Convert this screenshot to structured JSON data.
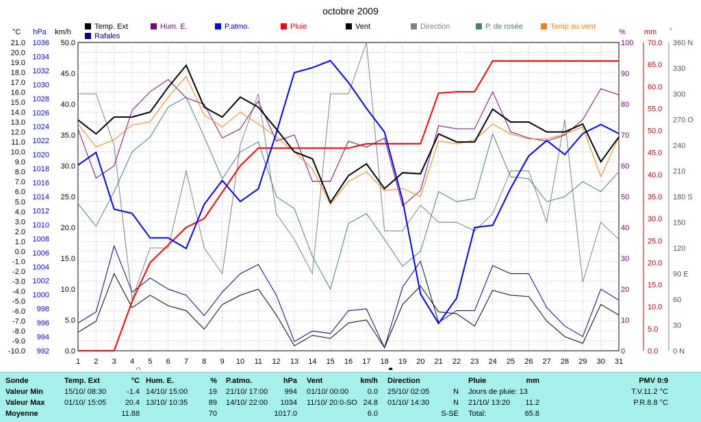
{
  "chart_data": {
    "type": "line",
    "title": "octobre 2009",
    "x": [
      1,
      2,
      3,
      4,
      5,
      6,
      7,
      8,
      9,
      10,
      11,
      12,
      13,
      14,
      15,
      16,
      17,
      18,
      19,
      20,
      21,
      22,
      23,
      24,
      25,
      26,
      27,
      28,
      29,
      30,
      31
    ],
    "axes": {
      "left_temp": {
        "unit": "°C",
        "range": [
          -10,
          21
        ],
        "ticks": [
          "21.0",
          "20.0",
          "19.0",
          "18.0",
          "17.0",
          "16.0",
          "15.0",
          "14.0",
          "13.0",
          "12.0",
          "11.0",
          "10.0",
          "9.0",
          "8.0",
          "7.0",
          "6.0",
          "5.0",
          "4.0",
          "3.0",
          "2.0",
          "1.0",
          "0.0",
          "-1.0",
          "-2.0",
          "-3.0",
          "-4.0",
          "-5.0",
          "-6.0",
          "-7.0",
          "-8.0",
          "-9.0",
          "-10.0"
        ]
      },
      "left_pressure": {
        "unit": "hPa",
        "range": [
          992,
          1036
        ],
        "ticks": [
          "1036",
          "1034",
          "1032",
          "1030",
          "1028",
          "1026",
          "1024",
          "1022",
          "1020",
          "1018",
          "1016",
          "1014",
          "1012",
          "1010",
          "1008",
          "1006",
          "1004",
          "1002",
          "1000",
          "998",
          "996",
          "994",
          "992"
        ]
      },
      "left_wind": {
        "unit": "km/h",
        "range": [
          0,
          50
        ],
        "ticks": [
          "50.0",
          "45.0",
          "40.0",
          "35.0",
          "30.0",
          "25.0",
          "20.0",
          "15.0",
          "10.0",
          "5.0",
          "0.0"
        ]
      },
      "right_humidity": {
        "unit": "%",
        "range": [
          0,
          100
        ],
        "ticks": [
          "100",
          "90",
          "80",
          "70",
          "60",
          "50",
          "40",
          "30",
          "20",
          "10",
          "0"
        ]
      },
      "right_rain": {
        "unit": "mm",
        "range": [
          0,
          70
        ],
        "ticks": [
          "70.0",
          "65.0",
          "60.0",
          "55.0",
          "50.0",
          "45.0",
          "40.0",
          "35.0",
          "30.0",
          "25.0",
          "20.0",
          "15.0",
          "10.0",
          "5.0",
          "0.0"
        ]
      },
      "right_direction": {
        "unit": "°",
        "ticks": [
          "360 N",
          "330",
          "300",
          "270 O",
          "240",
          "210",
          "180 S",
          "150",
          "120",
          "90 E",
          "60",
          "30",
          "0 N"
        ]
      }
    },
    "legend": [
      {
        "name": "Temp. Ext",
        "color": "#000000"
      },
      {
        "name": "Rafales",
        "color": "#000080"
      },
      {
        "name": "Hum. E.",
        "color": "#800080"
      },
      {
        "name": "P.atmo.",
        "color": "#0000ff"
      },
      {
        "name": "Pluie",
        "color": "#ff0000"
      },
      {
        "name": "Vent",
        "color": "#000000"
      },
      {
        "name": "Direction",
        "color": "#808080"
      },
      {
        "name": "P. de rosée",
        "color": "#408080"
      },
      {
        "name": "Temp au vent",
        "color": "#ff8000"
      }
    ],
    "series": [
      {
        "name": "Temp. Ext",
        "axis": "left_temp",
        "color": "#000000",
        "width": 2,
        "values": [
          13.2,
          11.8,
          13.5,
          13.5,
          14.0,
          16.5,
          18.7,
          14.5,
          13.5,
          15.5,
          14.5,
          12.3,
          10.0,
          9.3,
          4.9,
          7.6,
          8.8,
          6.3,
          7.9,
          7.8,
          11.8,
          11.0,
          11.0,
          14.3,
          13.0,
          13.0,
          12.0,
          12.0,
          12.8,
          9.0,
          11.5
        ]
      },
      {
        "name": "Temp au vent",
        "axis": "left_temp",
        "color": "#ff8000",
        "width": 1,
        "values": [
          12.8,
          10.5,
          11.2,
          12.7,
          13.0,
          15.5,
          17.6,
          13.7,
          12.5,
          14.0,
          12.8,
          11.5,
          10.0,
          8.3,
          4.7,
          7.0,
          8.0,
          6.1,
          6.3,
          5.5,
          11.1,
          10.8,
          11.2,
          12.8,
          11.8,
          11.3,
          11.3,
          11.8,
          12.5,
          7.5,
          11.5
        ]
      },
      {
        "name": "Hum. E.",
        "axis": "right_humidity",
        "color": "#800080",
        "width": 1,
        "values": [
          72,
          56,
          60,
          78,
          84,
          88,
          82,
          80,
          69,
          72,
          81,
          68,
          70,
          55,
          55,
          68,
          66,
          69,
          47,
          52,
          73,
          72,
          72,
          84,
          71,
          69,
          68,
          70,
          75,
          85,
          83
        ]
      },
      {
        "name": "P. de rosée",
        "axis": "left_temp",
        "color": "#408080",
        "width": 1,
        "values": [
          4.8,
          2.5,
          6.0,
          10.0,
          11.5,
          14.5,
          15.5,
          11.5,
          7.3,
          10.0,
          11.0,
          5.5,
          4.3,
          -0.5,
          -3.8,
          2.8,
          3.8,
          1.2,
          -1.5,
          0.0,
          6.0,
          5.0,
          5.3,
          11.8,
          7.5,
          7.3,
          5.0,
          5.5,
          7.0,
          6.0,
          8.0
        ]
      },
      {
        "name": "Direction",
        "axis": "right_direction",
        "color": "#808080",
        "width": 1,
        "values": [
          300,
          300,
          240,
          60,
          120,
          120,
          210,
          120,
          90,
          240,
          300,
          160,
          130,
          90,
          300,
          300,
          360,
          140,
          140,
          170,
          150,
          150,
          140,
          160,
          210,
          210,
          150,
          270,
          80,
          150,
          130
        ]
      },
      {
        "name": "P.atmo.",
        "axis": "left_pressure",
        "color": "#0000ff",
        "width": 2,
        "values": [
          1018.5,
          1020.3,
          1012.2,
          1011.6,
          1008.1,
          1008.1,
          1006.6,
          1012.9,
          1016.3,
          1013.3,
          1015.1,
          1023.1,
          1031.7,
          1032.4,
          1033.4,
          1030.3,
          1026.6,
          1023.2,
          1013.5,
          1000.1,
          995.9,
          999.5,
          1009.6,
          1009.9,
          1015.2,
          1019.8,
          1022.0,
          1020.0,
          1023.0,
          1024.3,
          1023.0
        ]
      },
      {
        "name": "Pluie",
        "axis": "right_rain",
        "color": "#ff0000",
        "width": 2,
        "values": [
          0,
          0,
          0,
          11.2,
          20.0,
          24.0,
          28.0,
          30.0,
          36.0,
          42.0,
          46.0,
          46.0,
          46.0,
          46.0,
          46.0,
          46.0,
          47.0,
          47.0,
          47.0,
          47.0,
          58.5,
          58.8,
          58.8,
          65.8,
          65.8,
          65.8,
          65.8,
          65.8,
          65.8,
          65.8,
          65.8
        ]
      },
      {
        "name": "Rafales",
        "axis": "left_wind",
        "color": "#000080",
        "width": 1,
        "values": [
          4.5,
          6.3,
          17.0,
          9.5,
          11.8,
          10.0,
          9.0,
          5.7,
          9.5,
          12.5,
          14.0,
          9.0,
          1.5,
          3.2,
          2.8,
          6.5,
          6.8,
          0.5,
          10.3,
          14.5,
          4.6,
          6.5,
          6.5,
          13.8,
          12.5,
          12.5,
          7.0,
          4.0,
          2.3,
          10.0,
          8.2
        ]
      },
      {
        "name": "Vent",
        "axis": "left_wind",
        "color": "#000000",
        "width": 1,
        "values": [
          3.0,
          4.8,
          12.5,
          7.0,
          9.0,
          7.3,
          6.5,
          3.5,
          7.5,
          9.0,
          10.0,
          5.8,
          0.8,
          2.5,
          2.0,
          4.5,
          5.0,
          0.5,
          7.5,
          10.5,
          6.3,
          6.0,
          4.0,
          9.8,
          9.0,
          8.8,
          4.8,
          2.3,
          1.2,
          7.5,
          5.8
        ]
      }
    ],
    "grid": true,
    "markers": [
      {
        "x": 4,
        "symbol": "○"
      },
      {
        "x": 18,
        "symbol": "●"
      }
    ]
  },
  "stats": {
    "sonde": {
      "head": "Sonde",
      "rows": [
        "Valeur Min",
        "Valeur Max",
        "Moyenne"
      ]
    },
    "temp": {
      "head": "Temp. Ext",
      "unit": "°C",
      "min_date": "15/10/  08:30",
      "min_val": "-1.4",
      "max_date": "01/10/  15:05",
      "max_val": "20.4",
      "avg": "11.88"
    },
    "hum": {
      "head": "Hum. E.",
      "unit": "%",
      "min_date": "14/10/  15:00",
      "min_val": "19",
      "max_date": "13/10/  10:35",
      "max_val": "89",
      "avg": "70"
    },
    "patmo": {
      "head": "P.atmo.",
      "unit": "hPa",
      "min_date": "21/10/  17:00",
      "min_val": "994",
      "max_date": "14/10/  22:00",
      "max_val": "1034",
      "avg": "1017.0"
    },
    "vent": {
      "head": "Vent",
      "unit": "km/h",
      "min_date": "01/10/  00:00",
      "min_val": "0.0",
      "max_date": "11/10/  20:0-SO",
      "max_val": "24.8",
      "avg": "6.0"
    },
    "dir": {
      "head": "Direction",
      "min_date": "25/10/  02:05",
      "min_val": "N",
      "max_date": "01/10/  14:30",
      "max_val": "N",
      "avg": "S-SE"
    },
    "pluie": {
      "head": "Pluie",
      "unit": "mm",
      "row1": "Jours de pluie: 13",
      "max_date": "21/10/  13:20",
      "max_val": "11.2",
      "total_label": "Total:",
      "total_val": "65.8"
    },
    "pmv": {
      "head": "PMV 0:9",
      "tv": "T.V.11.2 °C",
      "pr": "P.R.8.8 °C"
    }
  }
}
